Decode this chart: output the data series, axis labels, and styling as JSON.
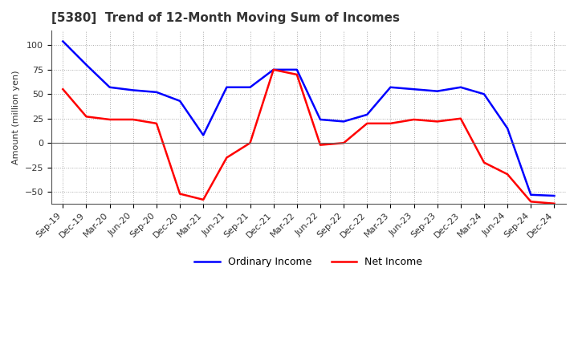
{
  "title": "[5380]  Trend of 12-Month Moving Sum of Incomes",
  "ylabel": "Amount (million yen)",
  "x_labels": [
    "Sep-19",
    "Dec-19",
    "Mar-20",
    "Jun-20",
    "Sep-20",
    "Dec-20",
    "Mar-21",
    "Jun-21",
    "Sep-21",
    "Dec-21",
    "Mar-22",
    "Jun-22",
    "Sep-22",
    "Dec-22",
    "Mar-23",
    "Jun-23",
    "Sep-23",
    "Dec-23",
    "Mar-24",
    "Jun-24",
    "Sep-24",
    "Dec-24"
  ],
  "ordinary_income": [
    104,
    80,
    57,
    54,
    52,
    43,
    8,
    57,
    57,
    75,
    75,
    24,
    22,
    29,
    57,
    55,
    53,
    57,
    50,
    15,
    -53,
    -54
  ],
  "net_income": [
    55,
    27,
    24,
    24,
    20,
    -52,
    -58,
    -15,
    0,
    75,
    70,
    -2,
    0,
    20,
    20,
    24,
    22,
    25,
    -20,
    -32,
    -60,
    -62
  ],
  "ordinary_color": "#0000FF",
  "net_color": "#FF0000",
  "ylim": [
    -62,
    115
  ],
  "yticks": [
    -50,
    -25,
    0,
    25,
    50,
    75,
    100
  ],
  "title_fontsize": 11,
  "title_color": "#333333",
  "label_fontsize": 8,
  "tick_fontsize": 8
}
